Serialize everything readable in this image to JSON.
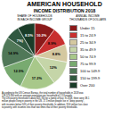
{
  "chart_data": {
    "type": "pie",
    "title": "AMERICAN HOUSEHOLD",
    "subtitle": "INCOME DISTRIBUTION 2018",
    "categories": [
      "Under 15",
      "15 to 24.9",
      "25 to 34.9",
      "35 to 49.9",
      "50 to 74.9",
      "75 to 99.9",
      "100 to 149.9",
      "150 to 199.9",
      "Over 200"
    ],
    "values": [
      10.2,
      8.9,
      8.8,
      12.0,
      17.2,
      12.5,
      14.9,
      7.0,
      8.5
    ],
    "value_labels": [
      "10.2%",
      "8.9%",
      "8.8%",
      "12%",
      "17.2%",
      "12.5%",
      "14.9%",
      "7%)",
      "8.5%"
    ],
    "colors": [
      "#8B1A1A",
      "#C83030",
      "#D4C8A0",
      "#C5D5A8",
      "#A8C88A",
      "#78AA70",
      "#507858",
      "#305840",
      "#1A3C28"
    ],
    "data_labels": true,
    "legend": "right",
    "annotations": [
      "SHARE OF HOUSEHOLDS",
      "IN EACH INCOME GROUP",
      "ANNUAL INCOME",
      "THOUSANDS OF DOLLARS",
      "According to the US Census Bureau, the total number of households in 2018 was",
      "128,579,000 with an average population per household of 2.53 people.",
      "The US poverty threshold is about $25,700 for a family of four. In 2018, there were 38.1",
      "million people living in poverty in the US. 17.3 million people live in \"deep poverty\",",
      "with incomes below 50% of their poverty thresholds. In addition, 93.6 million live close",
      "to poverty, with incomes less than two times that of their poverty thresholds."
    ]
  }
}
